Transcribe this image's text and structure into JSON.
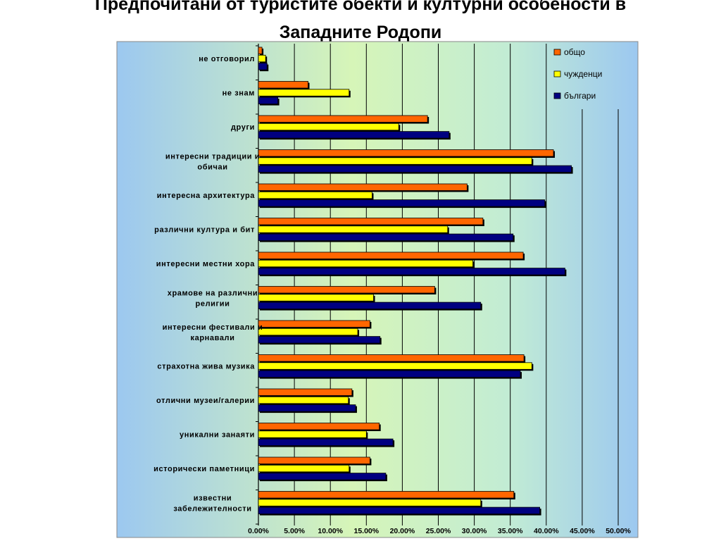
{
  "slide": {
    "title": "Предпочитани от туристите  обекти и културни особености в\nЗападните Родопи"
  },
  "chart_data": {
    "type": "bar",
    "orientation": "horizontal",
    "title": "",
    "xlabel": "",
    "ylabel": "",
    "xlim": [
      0,
      50
    ],
    "x_tick_labels": [
      "0.00%",
      "5.00%",
      "10.00%",
      "15.00%",
      "20.00%",
      "25.00%",
      "30.00%",
      "35.00%",
      "40.00%",
      "45.00%",
      "50.00%"
    ],
    "grid": "vertical",
    "legend_position": "top-right",
    "categories": [
      "не отговорил",
      "не знам",
      "други",
      "интересни традиции и обичаи",
      "интересна архитектура",
      "различни култура и бит",
      "интересни местни хора",
      "храмове на различни религии",
      "интересни фестивали и карнавали",
      "страхотна жива музика",
      "отлични музеи/галерии",
      "уникални занаяти",
      "исторически паметници",
      "известни забележителности"
    ],
    "category_lines": [
      [
        "не отговорил"
      ],
      [
        "не знам"
      ],
      [
        "други"
      ],
      [
        "интересни традиции и",
        "обичаи"
      ],
      [
        "интересна архитектура"
      ],
      [
        "различни култура и бит"
      ],
      [
        "интересни местни хора"
      ],
      [
        "храмове на различни",
        "религии"
      ],
      [
        "интересни фестивали и",
        "карнавали"
      ],
      [
        "страхотна жива музика"
      ],
      [
        "отлични музеи/галерии"
      ],
      [
        "уникални занаяти"
      ],
      [
        "исторически паметници"
      ],
      [
        "известни",
        "забележителности"
      ]
    ],
    "series": [
      {
        "name": "общо",
        "color": "#FF6600",
        "values": [
          0.5,
          6.9,
          23.5,
          41.0,
          29.0,
          31.2,
          36.8,
          24.5,
          15.5,
          36.9,
          13.0,
          16.8,
          15.5,
          35.5
        ]
      },
      {
        "name": "чужденци",
        "color": "#FFFF00",
        "values": [
          1.0,
          12.6,
          19.5,
          38.0,
          15.8,
          26.3,
          29.8,
          16.0,
          13.8,
          38.0,
          12.5,
          15.0,
          12.6,
          30.9
        ]
      },
      {
        "name": "българи",
        "color": "#000080",
        "values": [
          1.2,
          2.7,
          26.5,
          43.5,
          39.8,
          35.4,
          42.6,
          30.9,
          16.9,
          36.4,
          13.5,
          18.7,
          17.7,
          39.1
        ]
      }
    ],
    "colors": {
      "background_left": "#9cc8f0",
      "background_mid": "#c8f0c0",
      "background_right": "#9cc8f0",
      "plot_background": "#d8f5b8",
      "gridline": "#000000"
    }
  }
}
